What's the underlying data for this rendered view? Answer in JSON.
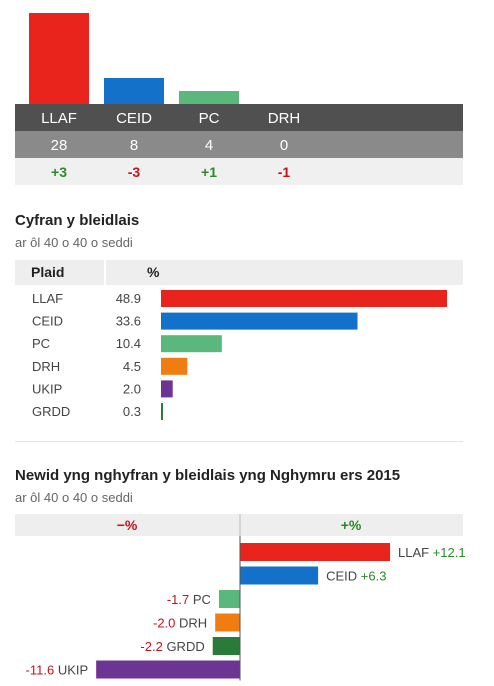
{
  "seats": {
    "chart_data": {
      "type": "bar",
      "categories": [
        "LLAF",
        "CEID",
        "PC",
        "DRH"
      ],
      "values": [
        28,
        8,
        4,
        0
      ],
      "changes": [
        "+3",
        "-3",
        "+1",
        "-1"
      ],
      "colors": [
        "#e8241d",
        "#1371c9",
        "#5ab87d",
        "#f07d12"
      ],
      "change_colors": [
        "#2a8a2a",
        "#c0151b",
        "#2a8a2a",
        "#c0151b"
      ]
    }
  },
  "vote_share": {
    "title": "Cyfran y bleidlais",
    "subtitle": "ar ôl 40 o 40 o seddi",
    "header_party": "Plaid",
    "header_pct": "%",
    "chart_data": {
      "type": "bar",
      "orientation": "horizontal",
      "categories": [
        "LLAF",
        "CEID",
        "PC",
        "DRH",
        "UKIP",
        "GRDD"
      ],
      "values": [
        48.9,
        33.6,
        10.4,
        4.5,
        2.0,
        0.3
      ],
      "labels": [
        "48.9",
        "33.6",
        "10.4",
        "4.5",
        "2.0",
        "0.3"
      ],
      "colors": [
        "#e8241d",
        "#1371c9",
        "#5ab87d",
        "#f07d12",
        "#6e3494",
        "#2a7a3a"
      ]
    }
  },
  "vote_change": {
    "title": "Newid yng nghyfran y bleidlais yng Nghymru ers 2015",
    "subtitle": "ar ôl 40 o 40 o seddi",
    "header_neg": "−%",
    "header_pos": "+%",
    "chart_data": {
      "type": "bar",
      "orientation": "horizontal",
      "categories": [
        "LLAF",
        "CEID",
        "PC",
        "DRH",
        "GRDD",
        "UKIP"
      ],
      "values": [
        12.1,
        6.3,
        -1.7,
        -2.0,
        -2.2,
        -11.6
      ],
      "labels": [
        "+12.1",
        "+6.3",
        "-1.7",
        "-2.0",
        "-2.2",
        "-11.6"
      ],
      "colors": [
        "#e8241d",
        "#1371c9",
        "#5ab87d",
        "#f07d12",
        "#2a7a3a",
        "#6e3494"
      ],
      "pos_color": "#2a8a2a",
      "neg_color": "#c0151b"
    }
  }
}
